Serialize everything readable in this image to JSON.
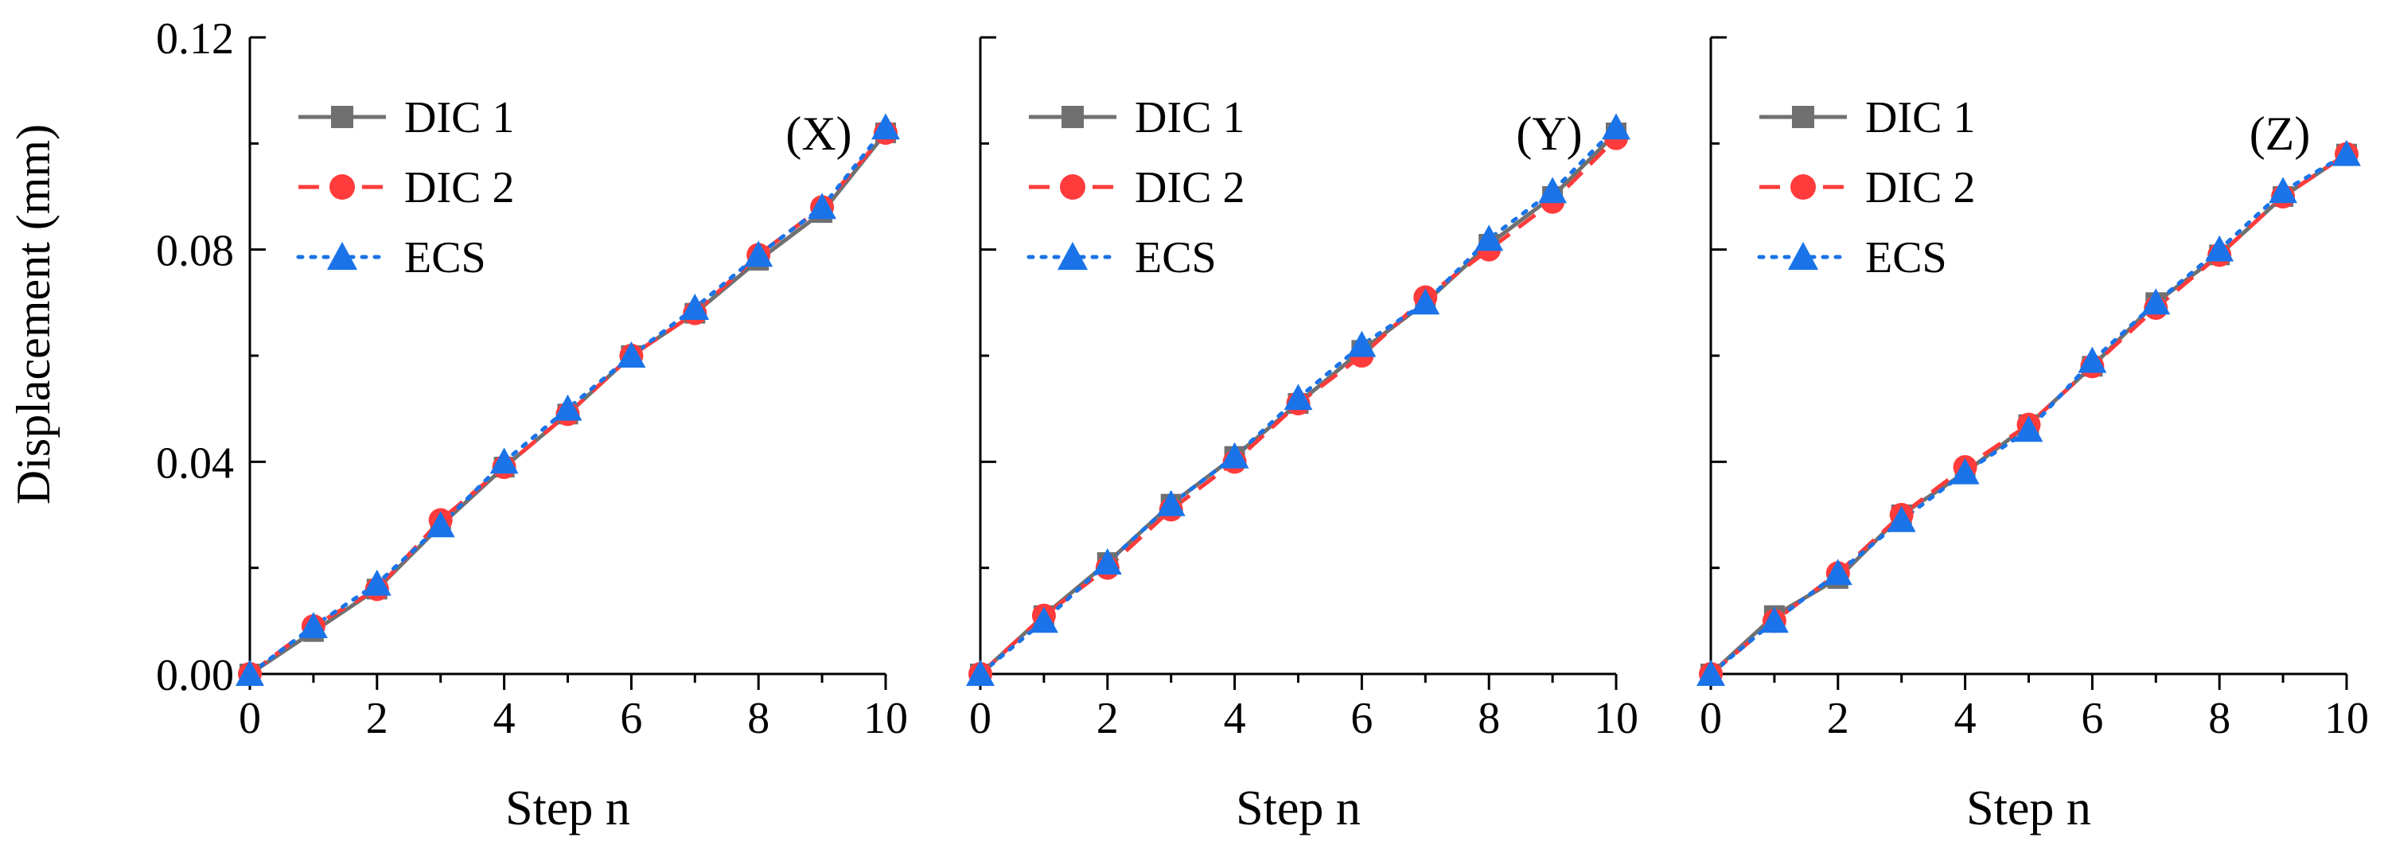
{
  "figure": {
    "ylabel": "Displacement (mm)",
    "y_ticks": [
      "0.00",
      "0.04",
      "0.08",
      "0.12"
    ],
    "x_ticks": [
      "0",
      "2",
      "4",
      "6",
      "8",
      "10"
    ]
  },
  "colors": {
    "DIC 1": "#707070",
    "DIC 2": "#ff3b3b",
    "ECS": "#1a73e8"
  },
  "chart_data": [
    {
      "type": "line",
      "annotation": "(X)",
      "xlabel": "Step n",
      "ylabel": "Displacement (mm)",
      "xlim": [
        0,
        10
      ],
      "ylim": [
        0,
        0.12
      ],
      "grid": false,
      "legend": "top-left",
      "x": [
        0,
        1,
        2,
        3,
        4,
        5,
        6,
        7,
        8,
        9,
        10
      ],
      "series": [
        {
          "name": "DIC 1",
          "line": "solid",
          "marker": "square",
          "values": [
            0.0,
            0.008,
            0.016,
            0.028,
            0.039,
            0.049,
            0.06,
            0.068,
            0.078,
            0.087,
            0.102
          ]
        },
        {
          "name": "DIC 2",
          "line": "dashed",
          "marker": "circle",
          "values": [
            0.0,
            0.009,
            0.016,
            0.029,
            0.039,
            0.049,
            0.06,
            0.068,
            0.079,
            0.088,
            0.102
          ]
        },
        {
          "name": "ECS",
          "line": "dotted",
          "marker": "triangle",
          "values": [
            0.0,
            0.009,
            0.017,
            0.028,
            0.04,
            0.05,
            0.06,
            0.069,
            0.079,
            0.088,
            0.103
          ]
        }
      ]
    },
    {
      "type": "line",
      "annotation": "(Y)",
      "xlabel": "Step n",
      "ylabel": "",
      "xlim": [
        0,
        10
      ],
      "ylim": [
        0,
        0.12
      ],
      "grid": false,
      "legend": "top-left",
      "x": [
        0,
        1,
        2,
        3,
        4,
        5,
        6,
        7,
        8,
        9,
        10
      ],
      "series": [
        {
          "name": "DIC 1",
          "line": "solid",
          "marker": "square",
          "values": [
            0.0,
            0.011,
            0.021,
            0.032,
            0.041,
            0.051,
            0.061,
            0.07,
            0.081,
            0.09,
            0.102
          ]
        },
        {
          "name": "DIC 2",
          "line": "dashed",
          "marker": "circle",
          "values": [
            0.0,
            0.011,
            0.02,
            0.031,
            0.04,
            0.051,
            0.06,
            0.071,
            0.08,
            0.089,
            0.101
          ]
        },
        {
          "name": "ECS",
          "line": "dotted",
          "marker": "triangle",
          "values": [
            0.0,
            0.01,
            0.021,
            0.032,
            0.041,
            0.052,
            0.062,
            0.07,
            0.082,
            0.091,
            0.103
          ]
        }
      ]
    },
    {
      "type": "line",
      "annotation": "(Z)",
      "xlabel": "Step n",
      "ylabel": "",
      "xlim": [
        0,
        10
      ],
      "ylim": [
        0,
        0.12
      ],
      "grid": false,
      "legend": "top-left",
      "x": [
        0,
        1,
        2,
        3,
        4,
        5,
        6,
        7,
        8,
        9,
        10
      ],
      "series": [
        {
          "name": "DIC 1",
          "line": "solid",
          "marker": "square",
          "values": [
            0.0,
            0.011,
            0.018,
            0.03,
            0.038,
            0.047,
            0.058,
            0.07,
            0.079,
            0.09,
            0.098
          ]
        },
        {
          "name": "DIC 2",
          "line": "dashed",
          "marker": "circle",
          "values": [
            0.0,
            0.01,
            0.019,
            0.03,
            0.039,
            0.047,
            0.058,
            0.069,
            0.079,
            0.09,
            0.098
          ]
        },
        {
          "name": "ECS",
          "line": "dotted",
          "marker": "triangle",
          "values": [
            0.0,
            0.01,
            0.019,
            0.029,
            0.038,
            0.046,
            0.059,
            0.07,
            0.08,
            0.091,
            0.098
          ]
        }
      ]
    }
  ]
}
